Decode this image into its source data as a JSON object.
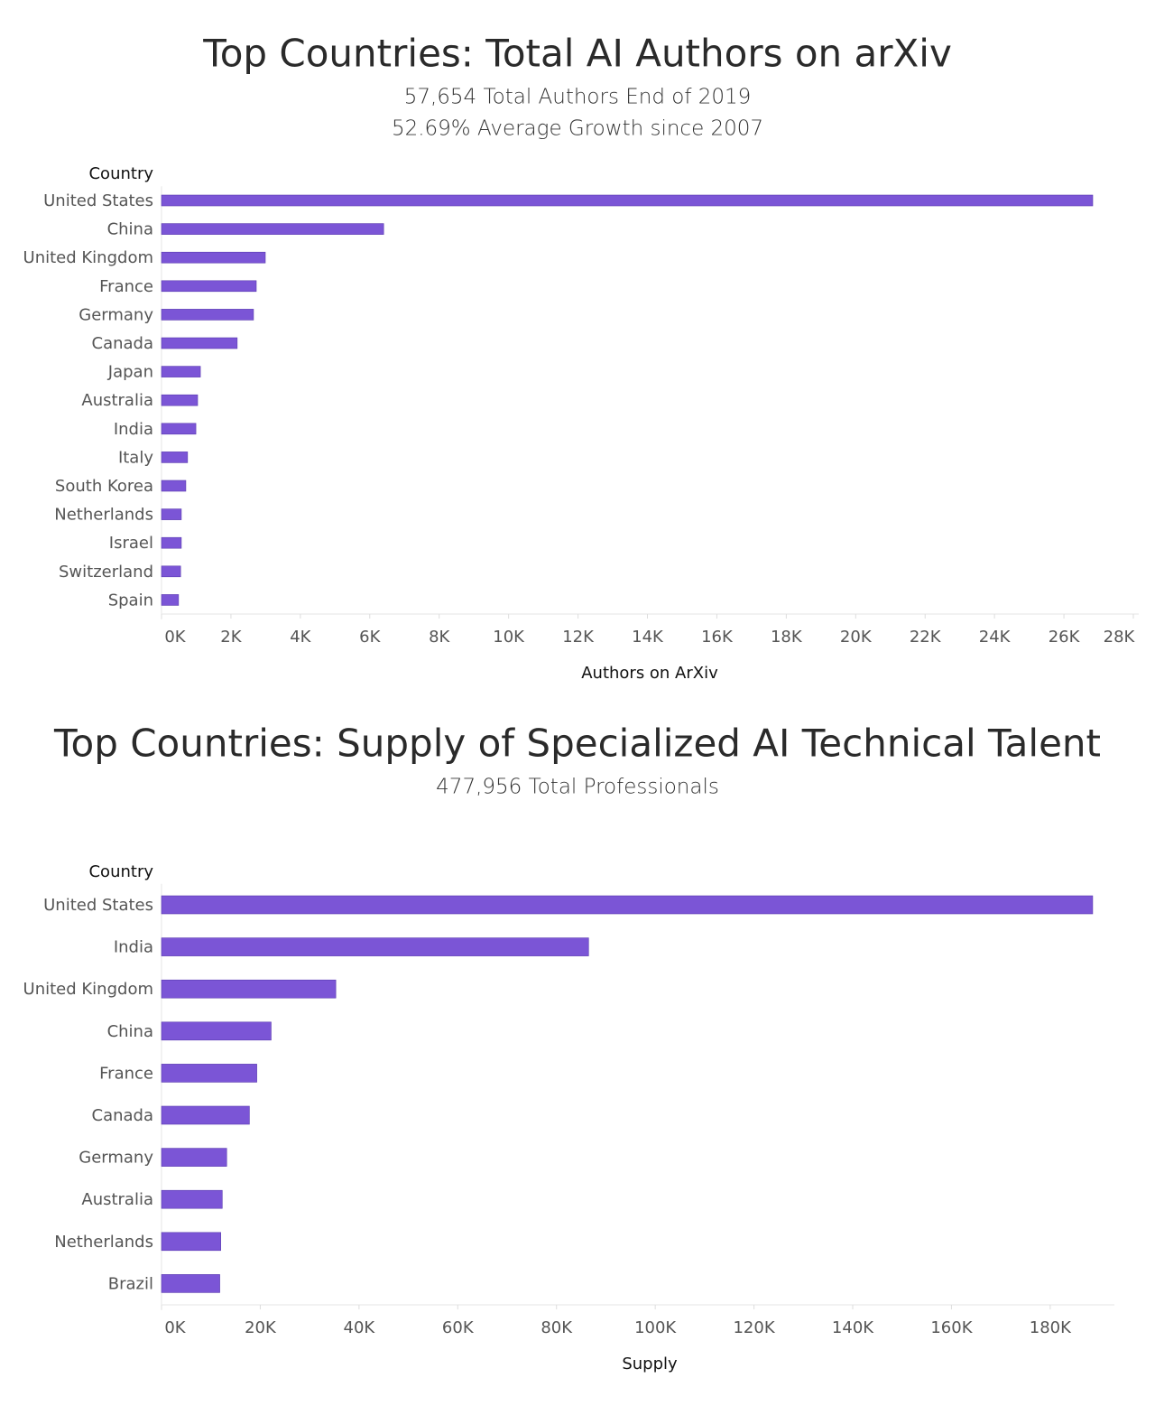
{
  "chart_data": [
    {
      "type": "hbar",
      "title": "Top Countries: Total AI Authors on arXiv",
      "subtitles": [
        "57,654 Total Authors End of 2019",
        "52.69% Average Growth since 2007"
      ],
      "y_axis_label": "Country",
      "x_axis_label": "Authors on ArXiv",
      "color": "#7b55d6",
      "categories": [
        "United States",
        "China",
        "United Kingdom",
        "France",
        "Germany",
        "Canada",
        "Japan",
        "Australia",
        "India",
        "Italy",
        "South Korea",
        "Netherlands",
        "Israel",
        "Switzerland",
        "Spain"
      ],
      "values": [
        26830,
        6400,
        2990,
        2730,
        2650,
        2180,
        1120,
        1040,
        990,
        750,
        700,
        570,
        570,
        550,
        490
      ],
      "xlim": [
        0,
        28000
      ],
      "xticks": [
        {
          "value": 0,
          "label": "0K"
        },
        {
          "value": 2000,
          "label": "2K"
        },
        {
          "value": 4000,
          "label": "4K"
        },
        {
          "value": 6000,
          "label": "6K"
        },
        {
          "value": 8000,
          "label": "8K"
        },
        {
          "value": 10000,
          "label": "10K"
        },
        {
          "value": 12000,
          "label": "12K"
        },
        {
          "value": 14000,
          "label": "14K"
        },
        {
          "value": 16000,
          "label": "16K"
        },
        {
          "value": 18000,
          "label": "18K"
        },
        {
          "value": 20000,
          "label": "20K"
        },
        {
          "value": 22000,
          "label": "22K"
        },
        {
          "value": 24000,
          "label": "24K"
        },
        {
          "value": 26000,
          "label": "26K"
        },
        {
          "value": 28000,
          "label": "28K"
        }
      ]
    },
    {
      "type": "hbar",
      "title": "Top Countries: Supply of Specialized AI Technical Talent",
      "subtitles": [
        "477,956 Total Professionals"
      ],
      "y_axis_label": "Country",
      "x_axis_label": "Supply",
      "color": "#7b55d6",
      "categories": [
        "United States",
        "India",
        "United Kingdom",
        "China",
        "France",
        "Canada",
        "Germany",
        "Australia",
        "Netherlands",
        "Brazil"
      ],
      "values": [
        188600,
        86500,
        35300,
        22200,
        19300,
        17800,
        13200,
        12300,
        12000,
        11800
      ],
      "xlim": [
        0,
        193000
      ],
      "xticks": [
        {
          "value": 0,
          "label": "0K"
        },
        {
          "value": 20000,
          "label": "20K"
        },
        {
          "value": 40000,
          "label": "40K"
        },
        {
          "value": 60000,
          "label": "60K"
        },
        {
          "value": 80000,
          "label": "80K"
        },
        {
          "value": 100000,
          "label": "100K"
        },
        {
          "value": 120000,
          "label": "120K"
        },
        {
          "value": 140000,
          "label": "140K"
        },
        {
          "value": 160000,
          "label": "160K"
        },
        {
          "value": 180000,
          "label": "180K"
        }
      ]
    }
  ]
}
